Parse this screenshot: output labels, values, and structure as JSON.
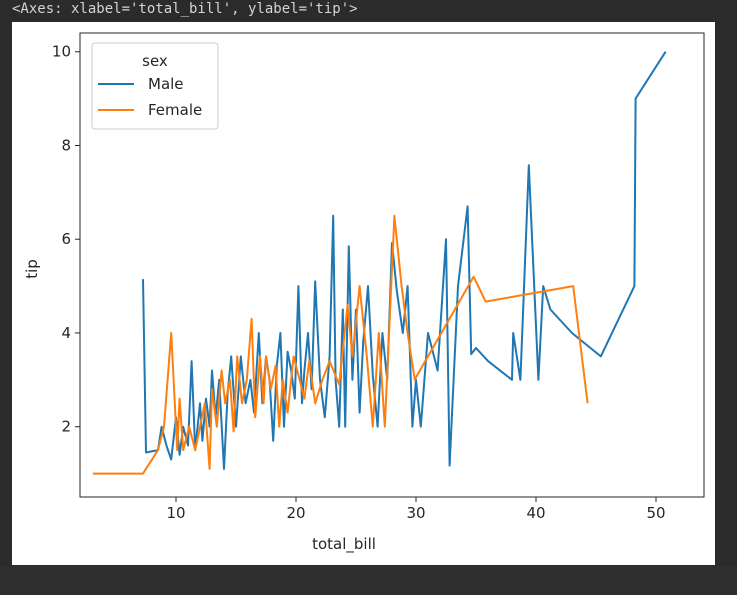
{
  "output_header": "<Axes: xlabel='total_bill', ylabel='tip'>",
  "colors": {
    "male": "#1f77b4",
    "female": "#ff7f0e",
    "background": "#2b2b2b",
    "plot_background": "#ffffff",
    "annotation_mark": "#e00000"
  },
  "chart_data": {
    "type": "line",
    "title": "",
    "xlabel": "total_bill",
    "ylabel": "tip",
    "xlim": [
      2,
      54
    ],
    "ylim": [
      0.5,
      10.4
    ],
    "xticks": [
      10,
      20,
      30,
      40,
      50
    ],
    "yticks": [
      2,
      4,
      6,
      8,
      10
    ],
    "grid": false,
    "legend": {
      "title": "sex",
      "placement": "top-left",
      "entries": [
        "Male",
        "Female"
      ]
    },
    "series": [
      {
        "name": "Male",
        "color": "#1f77b4",
        "x": [
          7.25,
          7.5,
          8.5,
          8.8,
          9.2,
          9.6,
          10.0,
          10.3,
          10.6,
          11.0,
          11.3,
          11.6,
          12.0,
          12.2,
          12.5,
          12.8,
          13.0,
          13.3,
          13.6,
          14.0,
          14.3,
          14.6,
          15.0,
          15.4,
          15.8,
          16.2,
          16.5,
          16.9,
          17.2,
          17.5,
          17.8,
          18.1,
          18.4,
          18.7,
          19.0,
          19.3,
          19.6,
          19.9,
          20.2,
          20.5,
          20.7,
          21.0,
          21.3,
          21.6,
          22.0,
          22.4,
          22.8,
          23.1,
          23.3,
          23.6,
          23.9,
          24.1,
          24.4,
          24.7,
          25.0,
          25.3,
          25.6,
          26.0,
          26.4,
          26.8,
          27.2,
          27.6,
          28.0,
          28.4,
          28.9,
          29.3,
          29.7,
          30.0,
          30.4,
          31.0,
          31.8,
          32.5,
          32.8,
          33.5,
          34.3,
          34.6,
          35.0,
          36.0,
          38.0,
          38.1,
          38.7,
          39.4,
          40.2,
          40.6,
          41.2,
          43.0,
          45.4,
          48.2,
          48.3,
          50.8
        ],
        "values": [
          5.15,
          1.45,
          1.5,
          2.0,
          1.6,
          1.3,
          2.2,
          1.4,
          2.0,
          1.6,
          3.4,
          1.5,
          2.5,
          1.7,
          2.6,
          2.0,
          3.2,
          2.2,
          3.0,
          1.1,
          2.7,
          3.5,
          2.0,
          3.5,
          2.5,
          3.0,
          2.3,
          4.0,
          2.5,
          3.5,
          3.0,
          1.7,
          3.3,
          4.0,
          2.0,
          3.6,
          3.2,
          2.6,
          5.0,
          2.5,
          3.2,
          4.0,
          2.8,
          5.1,
          3.0,
          2.2,
          3.5,
          6.5,
          3.0,
          2.0,
          4.5,
          2.0,
          5.85,
          3.0,
          4.5,
          2.3,
          3.8,
          5.0,
          3.1,
          2.0,
          4.0,
          3.0,
          5.92,
          4.9,
          4.0,
          5.0,
          2.0,
          3.0,
          2.0,
          4.0,
          3.2,
          6.0,
          1.17,
          5.0,
          6.7,
          3.55,
          3.68,
          3.4,
          3.0,
          4.0,
          3.0,
          7.58,
          3.0,
          5.0,
          4.5,
          4.0,
          3.5,
          5.0,
          9.0,
          10.0
        ]
      },
      {
        "name": "Female",
        "color": "#ff7f0e",
        "x": [
          3.07,
          7.25,
          8.5,
          9.0,
          9.6,
          10.1,
          10.3,
          10.6,
          11.1,
          11.6,
          12.0,
          12.4,
          12.8,
          13.0,
          13.4,
          13.8,
          14.1,
          14.5,
          14.8,
          15.1,
          15.5,
          15.9,
          16.3,
          16.6,
          17.0,
          17.3,
          17.5,
          17.9,
          18.3,
          18.6,
          18.9,
          19.3,
          19.8,
          20.3,
          20.7,
          21.1,
          21.6,
          22.2,
          22.8,
          23.6,
          24.3,
          24.7,
          25.3,
          25.9,
          26.4,
          26.9,
          27.4,
          28.2,
          28.8,
          29.3,
          29.9,
          30.1,
          34.8,
          35.8,
          43.1,
          44.3
        ],
        "values": [
          1.0,
          1.0,
          1.5,
          2.0,
          4.0,
          1.5,
          2.6,
          1.5,
          2.0,
          1.5,
          2.0,
          2.5,
          1.1,
          2.8,
          2.0,
          3.2,
          2.5,
          3.0,
          1.9,
          3.5,
          2.5,
          3.0,
          4.3,
          2.2,
          3.5,
          2.5,
          3.5,
          2.8,
          3.3,
          2.0,
          3.0,
          2.3,
          3.5,
          3.0,
          2.6,
          3.4,
          2.5,
          3.0,
          3.4,
          2.9,
          4.6,
          3.5,
          5.0,
          3.5,
          2.0,
          4.0,
          2.0,
          6.5,
          5.0,
          4.0,
          3.0,
          3.1,
          5.2,
          4.67,
          5.0,
          2.5
        ]
      }
    ]
  }
}
